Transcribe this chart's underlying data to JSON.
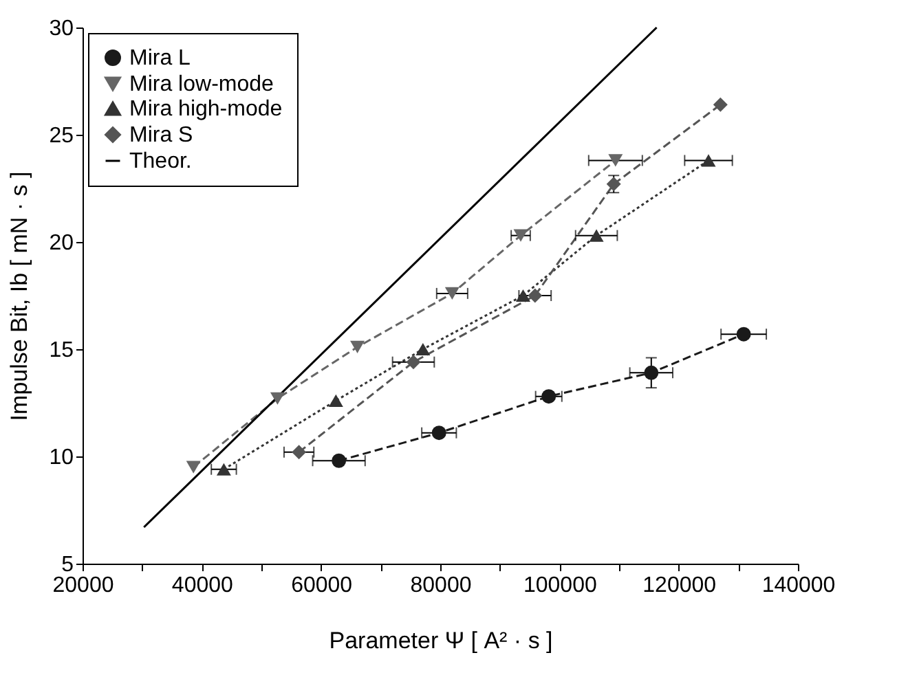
{
  "chart_data": {
    "type": "line",
    "xlabel": "Parameter Ψ [ A² · s ]",
    "ylabel": "Impulse Bit, Ib [ mN · s ]",
    "xlim": [
      20000,
      140000
    ],
    "ylim": [
      5,
      30
    ],
    "xticks": [
      20000,
      {
        "value": 30000,
        "label": null
      },
      40000,
      {
        "value": 50000,
        "label": null
      },
      60000,
      {
        "value": 70000,
        "label": null
      },
      80000,
      {
        "value": 90000,
        "label": null
      },
      100000,
      {
        "value": 110000,
        "label": null
      },
      120000,
      {
        "value": 130000,
        "label": null
      },
      140000
    ],
    "yticks": [
      5,
      10,
      15,
      20,
      25,
      30
    ],
    "legend": "top left",
    "grid": false,
    "series": [
      {
        "name": "Mira L",
        "color": "#1a1a1a",
        "marker": "circle",
        "line_style": "dashed",
        "x": [
          63000,
          79800,
          98200,
          115400,
          130900
        ],
        "values": [
          9.8,
          11.1,
          12.8,
          13.9,
          15.7
        ],
        "xerrors": [
          4400,
          2900,
          2200,
          3600,
          3800
        ],
        "errors": [
          null,
          null,
          null,
          0.7,
          null
        ]
      },
      {
        "name": "Mira low-mode",
        "color": "#666666",
        "marker": "triangle-down",
        "line_style": "dashed",
        "x": [
          38600,
          52700,
          66100,
          82000,
          93500,
          109400
        ],
        "values": [
          9.5,
          12.7,
          15.1,
          17.6,
          20.3,
          23.8
        ],
        "xerrors": [
          null,
          null,
          null,
          2600,
          1600,
          4500
        ],
        "errors": [
          null,
          null,
          null,
          null,
          null,
          null
        ]
      },
      {
        "name": "Mira high-mode",
        "color": "#333333",
        "marker": "triangle",
        "line_style": "dotted",
        "x": [
          43700,
          62500,
          77100,
          93900,
          106200,
          125000
        ],
        "values": [
          9.4,
          12.6,
          15.0,
          17.5,
          20.3,
          23.8
        ],
        "xerrors": [
          2100,
          null,
          null,
          null,
          3500,
          4000
        ],
        "errors": [
          null,
          null,
          null,
          null,
          null,
          null
        ]
      },
      {
        "name": "Mira S",
        "color": "#555555",
        "marker": "diamond",
        "line_style": "dashed",
        "x": [
          56300,
          75500,
          95900,
          109100,
          127000
        ],
        "values": [
          10.2,
          14.4,
          17.5,
          22.7,
          26.4
        ],
        "xerrors": [
          2500,
          3500,
          2700,
          null,
          null
        ],
        "errors": [
          null,
          null,
          null,
          0.4,
          null
        ]
      },
      {
        "name": "Theor.",
        "color": "#000000",
        "marker": "none",
        "line_style": "solid",
        "x": [
          30300,
          116300
        ],
        "values": [
          6.7,
          30
        ]
      }
    ]
  }
}
